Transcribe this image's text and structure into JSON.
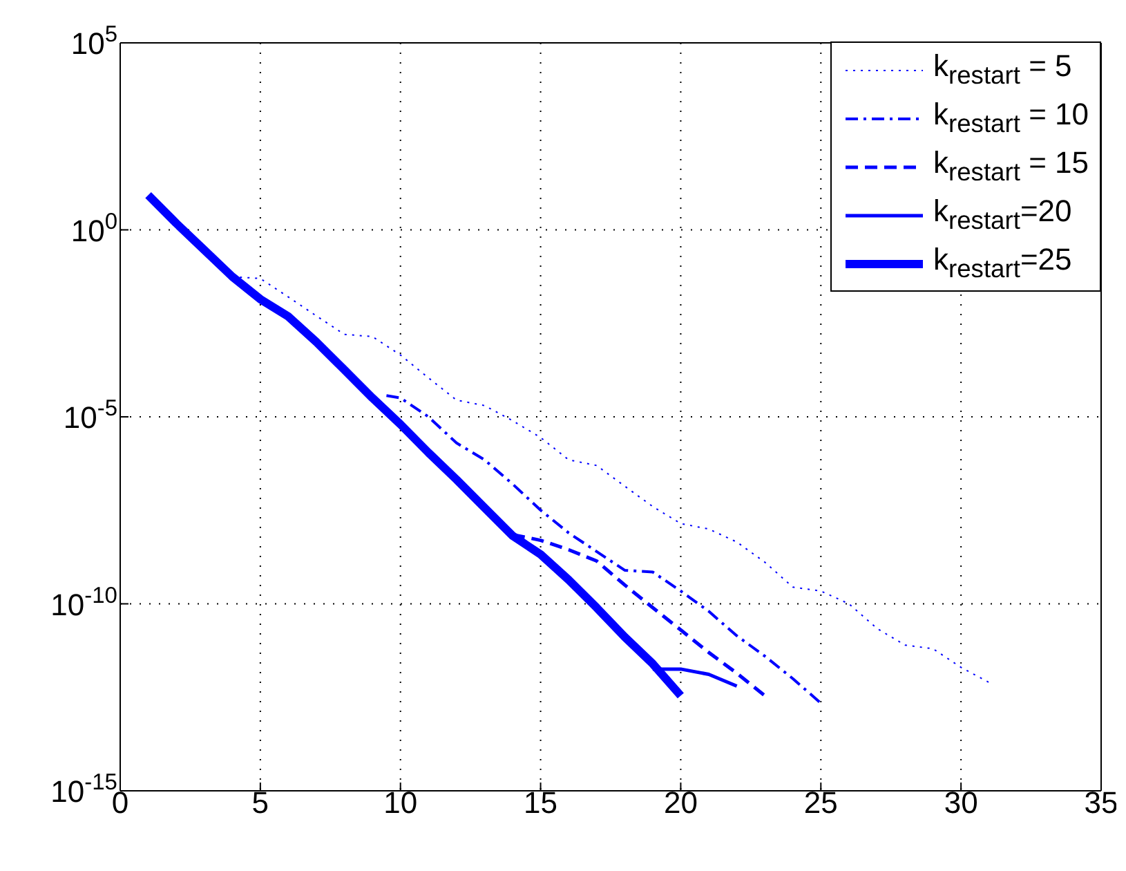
{
  "chart_data": {
    "type": "line",
    "log": "y",
    "grid": true,
    "legend": "top right",
    "marker": "none",
    "xlim": [
      0,
      35
    ],
    "xticks": [
      0,
      5,
      10,
      15,
      20,
      25,
      30,
      35
    ],
    "ylim": [
      1e-15,
      100000
    ],
    "yticks": [
      {
        "value": 1e-15,
        "label": "10$^{-15}$"
      },
      {
        "value": 1e-10,
        "label": "10$^{-10}$"
      },
      {
        "value": 1e-05,
        "label": "10$^{-5}$"
      },
      {
        "value": 1,
        "label": "10$^{0}$"
      },
      {
        "value": 100000,
        "label": "10$^{5}$"
      }
    ],
    "series": [
      {
        "name": "k$_{restart}$ = 5",
        "color": "#0000ff",
        "line_style": "dotted",
        "x": [
          4,
          5,
          6,
          7,
          8,
          9,
          10,
          11,
          12,
          13,
          14,
          15,
          16,
          17,
          18,
          19,
          20,
          21,
          22,
          23,
          24,
          25,
          26,
          27,
          28,
          29,
          30,
          31
        ],
        "values": [
          0.056,
          0.05,
          0.016,
          0.005,
          0.0016,
          0.0014,
          0.00045,
          0.00011,
          2.8e-05,
          2e-05,
          7.9e-06,
          2.8e-06,
          7.1e-07,
          5e-07,
          1.4e-07,
          4e-08,
          1.4e-08,
          1e-08,
          4.5e-09,
          1.3e-09,
          2.8e-10,
          2.2e-10,
          1e-10,
          2.2e-11,
          7.9e-12,
          6.3e-12,
          2e-12,
          7.9e-13
        ]
      },
      {
        "name": "k$_{restart}$ = 10",
        "color": "#0000ff",
        "line_style": "dashdot",
        "x": [
          9.5,
          10,
          11,
          12,
          13,
          14,
          15,
          16,
          17,
          18,
          19,
          20,
          21,
          22,
          23,
          24,
          25
        ],
        "values": [
          3.7e-05,
          3.2e-05,
          1e-05,
          2e-06,
          7.1e-07,
          1.6e-07,
          3.2e-08,
          7.9e-09,
          2.5e-09,
          7.9e-10,
          7.1e-10,
          2.2e-10,
          6.3e-11,
          1.4e-11,
          4e-12,
          1e-12,
          2.2e-13
        ]
      },
      {
        "name": "k$_{restart}$ = 15",
        "color": "#0000ff",
        "line_style": "dashed",
        "x": [
          14,
          15,
          16,
          17,
          18,
          19,
          20,
          21,
          22,
          23
        ],
        "values": [
          7.1e-09,
          5e-09,
          2.8e-09,
          1.4e-09,
          3.2e-10,
          7.9e-11,
          2e-11,
          5e-12,
          1.4e-12,
          3.5e-13
        ]
      },
      {
        "name": "k$_{restart}$=20",
        "color": "#0000ff",
        "line_style": "solid",
        "x": [
          19,
          20,
          21,
          22
        ],
        "values": [
          1.8e-12,
          1.8e-12,
          1.3e-12,
          6.3e-13
        ]
      },
      {
        "name": "k$_{restart}$=25",
        "color": "#0000ff",
        "line_style": "solid",
        "x": [
          1,
          2,
          3,
          4,
          5,
          6,
          7,
          8,
          9,
          10,
          11,
          12,
          13,
          14,
          15,
          16,
          17,
          18,
          19,
          20
        ],
        "values": [
          8.5,
          1.5,
          0.29,
          0.056,
          0.014,
          0.0048,
          0.001,
          0.00018,
          3.2e-05,
          6.3e-06,
          1.1e-06,
          2.1e-07,
          3.7e-08,
          6.6e-09,
          2.1e-09,
          4.4e-10,
          7.9e-11,
          1.3e-11,
          2.5e-12,
          3.5e-13
        ]
      }
    ]
  }
}
